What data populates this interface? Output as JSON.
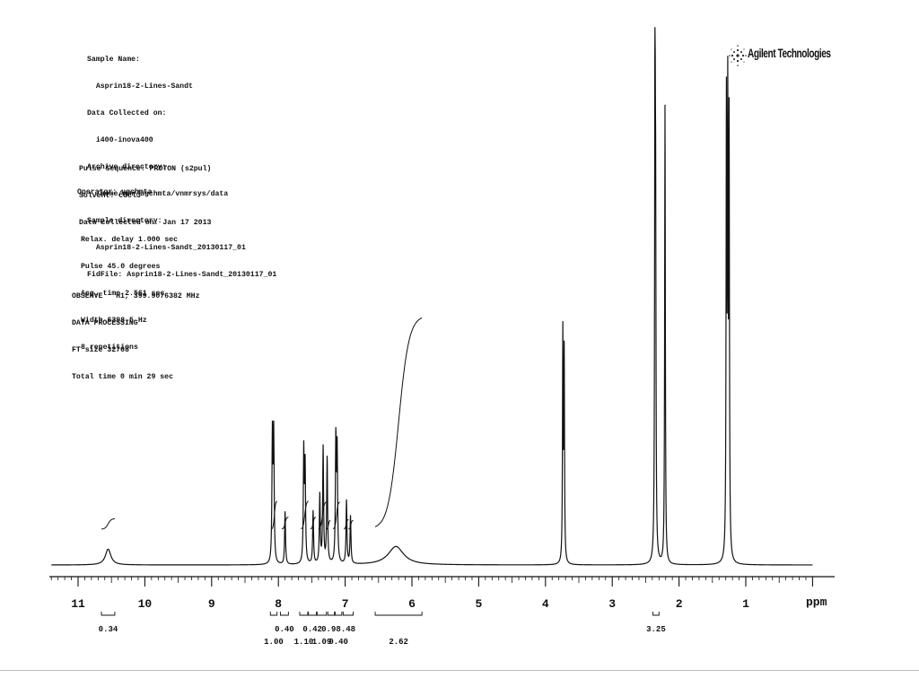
{
  "header": {
    "lines": [
      "Sample Name:",
      "  Asprin18-2-Lines-Sandt",
      "Data Collected on:",
      "  i400-inova400",
      "Archive directory:",
      "  /home/nmr/ugchmta/vnmrsys/data",
      "Sample directory:",
      "  Asprin18-2-Lines-Sandt_20130117_01",
      "FidFile: Asprin18-2-Lines-Sandt_20130117_01"
    ],
    "acq_lines": [
      "Pulse Sequence: PROTON (s2pul)",
      "Solvent: cdcl3",
      "Data collected on: Jan 17 2013"
    ],
    "operator": "Operator: ugchmta",
    "param_lines": [
      "Relax. delay 1.000 sec",
      "Pulse 45.0 degrees",
      "Acq. time 2.561 sec",
      "Width 6398.5 Hz",
      "8 repetitions"
    ],
    "proc_lines": [
      "OBSERVE   H1, 399.9076382 MHz",
      "DATA PROCESSING",
      "FT size 32768",
      "Total time 0 min 29 sec"
    ]
  },
  "logo": {
    "text": "Agilent Technologies",
    "icon": "agilent-spark-icon"
  },
  "chart_data": {
    "type": "line",
    "title": "",
    "xlabel": "ppm",
    "ylabel": "",
    "x_reversed": true,
    "xlim": [
      11.4,
      0.0
    ],
    "grid": false,
    "x_ticks": [
      11,
      10,
      9,
      8,
      7,
      6,
      5,
      4,
      3,
      2,
      1
    ],
    "peaks": [
      {
        "ppm": 10.55,
        "height": 0.03,
        "width": 0.05
      },
      {
        "ppm": 8.09,
        "height": 0.24,
        "width": 0.008
      },
      {
        "ppm": 8.07,
        "height": 0.24,
        "width": 0.008
      },
      {
        "ppm": 7.9,
        "height": 0.1,
        "width": 0.008
      },
      {
        "ppm": 7.62,
        "height": 0.21,
        "width": 0.008
      },
      {
        "ppm": 7.6,
        "height": 0.18,
        "width": 0.008
      },
      {
        "ppm": 7.48,
        "height": 0.1,
        "width": 0.008
      },
      {
        "ppm": 7.38,
        "height": 0.13,
        "width": 0.008
      },
      {
        "ppm": 7.33,
        "height": 0.22,
        "width": 0.008
      },
      {
        "ppm": 7.27,
        "height": 0.2,
        "width": 0.008
      },
      {
        "ppm": 7.14,
        "height": 0.23,
        "width": 0.008
      },
      {
        "ppm": 7.12,
        "height": 0.21,
        "width": 0.008
      },
      {
        "ppm": 6.98,
        "height": 0.12,
        "width": 0.008
      },
      {
        "ppm": 6.92,
        "height": 0.09,
        "width": 0.008
      },
      {
        "ppm": 6.24,
        "height": 0.035,
        "width": 0.14
      },
      {
        "ppm": 3.74,
        "height": 0.43,
        "width": 0.006
      },
      {
        "ppm": 3.72,
        "height": 0.39,
        "width": 0.006
      },
      {
        "ppm": 2.36,
        "height": 1.0,
        "width": 0.006
      },
      {
        "ppm": 2.35,
        "height": 0.55,
        "width": 0.006
      },
      {
        "ppm": 2.21,
        "height": 0.87,
        "width": 0.006
      },
      {
        "ppm": 1.29,
        "height": 0.84,
        "width": 0.006
      },
      {
        "ppm": 1.27,
        "height": 0.83,
        "width": 0.006
      },
      {
        "ppm": 1.25,
        "height": 0.8,
        "width": 0.006
      }
    ],
    "integral_traces": [
      {
        "from": 10.65,
        "to": 10.45,
        "rise": 0.13
      },
      {
        "from": 8.1,
        "to": 8.02,
        "rise": 0.35
      },
      {
        "from": 7.95,
        "to": 7.85,
        "rise": 0.15
      },
      {
        "from": 7.66,
        "to": 7.55,
        "rise": 0.35
      },
      {
        "from": 7.52,
        "to": 7.44,
        "rise": 0.15
      },
      {
        "from": 7.4,
        "to": 7.28,
        "rise": 0.34
      },
      {
        "from": 7.28,
        "to": 7.22,
        "rise": 0.11
      },
      {
        "from": 7.18,
        "to": 7.08,
        "rise": 0.34
      },
      {
        "from": 7.02,
        "to": 6.95,
        "rise": 0.12
      },
      {
        "from": 6.95,
        "to": 6.88,
        "rise": 0.11
      },
      {
        "from": 6.55,
        "to": 5.85,
        "rise": 0.98
      }
    ],
    "integrals": [
      {
        "from": 10.65,
        "to": 10.45,
        "value": "0.34",
        "row": 2
      },
      {
        "from": 8.12,
        "to": 8.02,
        "value": "1.00",
        "row": 3
      },
      {
        "from": 7.97,
        "to": 7.85,
        "value": "0.40",
        "row": 2
      },
      {
        "from": 7.68,
        "to": 7.56,
        "value": "1.10",
        "row": 3
      },
      {
        "from": 7.55,
        "to": 7.43,
        "value": "0.42",
        "row": 2
      },
      {
        "from": 7.42,
        "to": 7.28,
        "value": "1.09",
        "row": 3
      },
      {
        "from": 7.26,
        "to": 7.16,
        "value": "0.98",
        "row": 2
      },
      {
        "from": 7.15,
        "to": 7.05,
        "value": "0.40",
        "row": 3
      },
      {
        "from": 7.03,
        "to": 6.88,
        "value": ".48",
        "row": 2
      },
      {
        "from": 6.55,
        "to": 5.85,
        "value": "2.62",
        "row": 3
      },
      {
        "from": 2.39,
        "to": 2.3,
        "value": "3.25",
        "row": 1
      }
    ]
  }
}
